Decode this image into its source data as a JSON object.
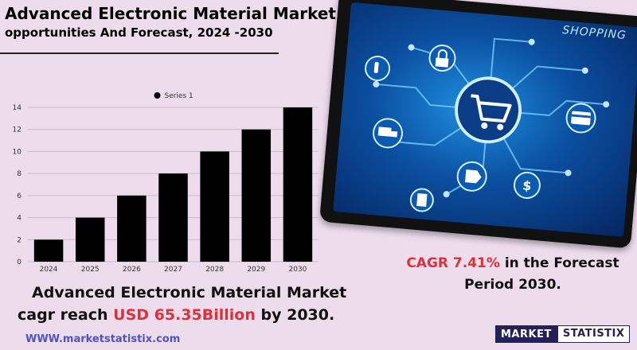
{
  "header": {
    "title_line1": "Advanced Electronic Material Market",
    "title_line2": "opportunities And Forecast, 2024 -2030"
  },
  "chart_data": {
    "type": "bar",
    "categories": [
      "2024",
      "2025",
      "2026",
      "2027",
      "2028",
      "2029",
      "2030"
    ],
    "series": [
      {
        "name": "Series 1",
        "values": [
          2,
          4,
          6,
          8,
          10,
          12,
          14
        ],
        "color": "#000000"
      }
    ],
    "ylim": [
      0,
      14
    ],
    "yticks": [
      0,
      2,
      4,
      6,
      8,
      10,
      12,
      14
    ],
    "grid": true,
    "legend": "top"
  },
  "illustration": {
    "label": "SHOPPING",
    "icons": [
      "cart-icon",
      "lock-icon",
      "credit-card-icon",
      "truck-icon",
      "price-tag-icon",
      "dollar-icon",
      "calculator-icon",
      "hand-pointer-icon"
    ],
    "colors": {
      "frame": "#111111",
      "screen": "#0b4fa0",
      "glow": "#1f8fe0"
    }
  },
  "cagr": {
    "prefix": "CAGR",
    "value": "7.41%",
    "suffix": "in the  Forecast",
    "line2": "Period  2030."
  },
  "summary": {
    "line1": "Advanced Electronic Material Market",
    "line2_prefix": "cagr reach",
    "line2_value": "USD  65.35Billion",
    "line2_suffix": "by 2030."
  },
  "footer": {
    "website": "WWW.marketstatistix.com",
    "logo_part1": "MARKET",
    "logo_part2": "STATISTIX"
  },
  "colors": {
    "background": "#ecdcec",
    "accent_red": "#e0303a",
    "brand_navy": "#24205a",
    "link_blue": "#5050c8"
  }
}
